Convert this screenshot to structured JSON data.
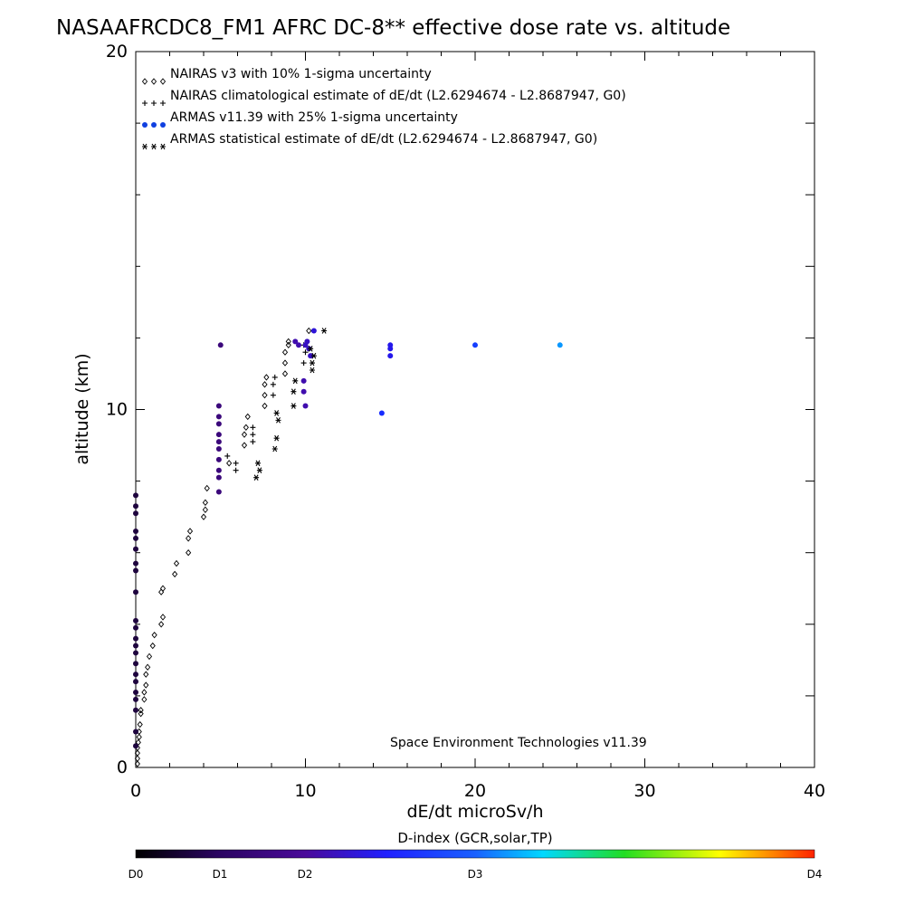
{
  "chart_data": {
    "type": "scatter",
    "title": "NASAAFRCDC8_FM1 AFRC DC-8** effective dose rate vs. altitude",
    "xlabel": "dE/dt microSv/h",
    "ylabel": "altitude (km)",
    "xlim": [
      0,
      40
    ],
    "ylim": [
      0,
      20
    ],
    "x_ticks": [
      "0",
      "10",
      "20",
      "30",
      "40"
    ],
    "y_ticks": [
      "0",
      "10",
      "20"
    ],
    "grid": false,
    "legend_position": "top-left",
    "legend": [
      {
        "symbol": "◇◇◇",
        "label": "NAIRAS v3 with 10% 1-sigma uncertainty"
      },
      {
        "symbol": "+++",
        "label": "NAIRAS climatological estimate of dE/dt (L2.6294674 - L2.8687947, G0)"
      },
      {
        "symbol": "●●●",
        "label": "ARMAS v11.39 with 25% 1-sigma uncertainty",
        "color": "#1040e0"
      },
      {
        "symbol": "✱✱✱",
        "label": "ARMAS statistical estimate of dE/dt (L2.6294674 - L2.8687947, G0)"
      }
    ],
    "annotation": "Space Environment Technologies v11.39",
    "colorbar": {
      "title": "D-index (GCR,solar,TP)",
      "labels": [
        {
          "text": "D0",
          "value": 0
        },
        {
          "text": "D1",
          "value": 0.25
        },
        {
          "text": "D2",
          "value": 0.5
        },
        {
          "text": "D3",
          "value": 1.0
        },
        {
          "text": "D4",
          "value": 2.0
        }
      ],
      "colors": [
        "#000000",
        "#4a0a8a",
        "#1a1aff",
        "#00ccff",
        "#22dd22",
        "#ffff00",
        "#ff2200"
      ]
    },
    "series": [
      {
        "name": "NAIRAS v3 with 10% 1-sigma uncertainty",
        "marker": "diamond",
        "color": "#000000",
        "points": [
          [
            0.1,
            0.1
          ],
          [
            0.1,
            0.25
          ],
          [
            0.1,
            0.4
          ],
          [
            0.1,
            0.55
          ],
          [
            0.15,
            0.7
          ],
          [
            0.2,
            0.85
          ],
          [
            0.2,
            1.0
          ],
          [
            0.25,
            1.2
          ],
          [
            0.3,
            1.5
          ],
          [
            0.3,
            1.6
          ],
          [
            0.5,
            1.9
          ],
          [
            0.5,
            2.1
          ],
          [
            0.6,
            2.3
          ],
          [
            0.6,
            2.6
          ],
          [
            0.7,
            2.8
          ],
          [
            0.8,
            3.1
          ],
          [
            1.0,
            3.4
          ],
          [
            1.1,
            3.7
          ],
          [
            1.5,
            4.0
          ],
          [
            1.6,
            4.2
          ],
          [
            1.5,
            4.9
          ],
          [
            1.6,
            5.0
          ],
          [
            2.3,
            5.4
          ],
          [
            2.4,
            5.7
          ],
          [
            3.1,
            6.0
          ],
          [
            3.1,
            6.4
          ],
          [
            3.2,
            6.6
          ],
          [
            4.0,
            7.0
          ],
          [
            4.1,
            7.2
          ],
          [
            4.1,
            7.4
          ],
          [
            4.2,
            7.8
          ],
          [
            5.5,
            8.5
          ],
          [
            6.4,
            9.0
          ],
          [
            6.4,
            9.3
          ],
          [
            6.5,
            9.5
          ],
          [
            6.6,
            9.8
          ],
          [
            7.6,
            10.1
          ],
          [
            7.6,
            10.4
          ],
          [
            7.6,
            10.7
          ],
          [
            7.7,
            10.9
          ],
          [
            8.8,
            11.0
          ],
          [
            8.8,
            11.3
          ],
          [
            8.8,
            11.6
          ],
          [
            9.0,
            11.8
          ],
          [
            9.0,
            11.9
          ],
          [
            10.2,
            12.2
          ]
        ]
      },
      {
        "name": "NAIRAS climatological estimate of dE/dt (L2.6294674 - L2.8687947, G0)",
        "marker": "plus",
        "color": "#000000",
        "points": [
          [
            5.9,
            8.3
          ],
          [
            5.9,
            8.5
          ],
          [
            5.4,
            8.7
          ],
          [
            6.9,
            9.1
          ],
          [
            6.9,
            9.3
          ],
          [
            6.9,
            9.5
          ],
          [
            8.1,
            10.4
          ],
          [
            8.1,
            10.7
          ],
          [
            8.2,
            10.9
          ],
          [
            9.9,
            11.3
          ],
          [
            10.0,
            11.6
          ],
          [
            9.9,
            11.8
          ]
        ]
      },
      {
        "name": "ARMAS v11.39 with 25% 1-sigma uncertainty",
        "marker": "dot",
        "points": [
          [
            5.0,
            11.8,
            0.2
          ],
          [
            4.9,
            10.1,
            0.2
          ],
          [
            4.9,
            9.8,
            0.2
          ],
          [
            4.9,
            9.6,
            0.2
          ],
          [
            4.9,
            9.3,
            0.2
          ],
          [
            4.9,
            9.1,
            0.2
          ],
          [
            4.9,
            8.9,
            0.2
          ],
          [
            4.9,
            8.6,
            0.2
          ],
          [
            4.9,
            8.3,
            0.2
          ],
          [
            4.9,
            8.1,
            0.2
          ],
          [
            4.9,
            7.7,
            0.2
          ],
          [
            0.0,
            7.6,
            0.1
          ],
          [
            0.0,
            7.3,
            0.1
          ],
          [
            0.0,
            7.1,
            0.1
          ],
          [
            0.0,
            6.6,
            0.1
          ],
          [
            0.0,
            6.4,
            0.1
          ],
          [
            0.0,
            6.1,
            0.1
          ],
          [
            0.0,
            5.7,
            0.1
          ],
          [
            0.0,
            5.5,
            0.1
          ],
          [
            0.0,
            4.9,
            0.1
          ],
          [
            0.0,
            4.1,
            0.1
          ],
          [
            0.0,
            3.9,
            0.1
          ],
          [
            0.0,
            3.6,
            0.1
          ],
          [
            0.0,
            3.4,
            0.1
          ],
          [
            0.0,
            3.2,
            0.1
          ],
          [
            0.0,
            2.9,
            0.1
          ],
          [
            0.0,
            2.6,
            0.1
          ],
          [
            0.0,
            2.4,
            0.1
          ],
          [
            0.0,
            2.1,
            0.1
          ],
          [
            0.0,
            1.9,
            0.1
          ],
          [
            0.0,
            1.6,
            0.1
          ],
          [
            0.0,
            1.0,
            0.1
          ],
          [
            0.0,
            0.6,
            0.1
          ],
          [
            10.0,
            11.8,
            0.35
          ],
          [
            10.1,
            11.9,
            0.35
          ],
          [
            10.2,
            11.7,
            0.35
          ],
          [
            10.3,
            11.5,
            0.35
          ],
          [
            9.6,
            11.8,
            0.3
          ],
          [
            9.4,
            11.9,
            0.3
          ],
          [
            9.9,
            10.8,
            0.3
          ],
          [
            9.9,
            10.5,
            0.3
          ],
          [
            10.0,
            10.1,
            0.3
          ],
          [
            10.5,
            12.2,
            0.4
          ],
          [
            14.5,
            9.9,
            0.55
          ],
          [
            15.0,
            11.8,
            0.45
          ],
          [
            15.0,
            11.7,
            0.45
          ],
          [
            15.0,
            11.5,
            0.45
          ],
          [
            20.0,
            11.8,
            0.6
          ],
          [
            25.0,
            11.8,
            0.85
          ]
        ]
      },
      {
        "name": "ARMAS statistical estimate of dE/dt (L2.6294674 - L2.8687947, G0)",
        "marker": "asterisk",
        "color": "#000000",
        "points": [
          [
            7.2,
            8.5
          ],
          [
            7.3,
            8.3
          ],
          [
            7.1,
            8.1
          ],
          [
            8.3,
            9.2
          ],
          [
            8.2,
            8.9
          ],
          [
            8.3,
            9.9
          ],
          [
            8.4,
            9.7
          ],
          [
            9.3,
            10.1
          ],
          [
            9.3,
            10.5
          ],
          [
            9.4,
            10.8
          ],
          [
            10.4,
            11.3
          ],
          [
            10.5,
            11.5
          ],
          [
            10.4,
            11.1
          ],
          [
            10.3,
            11.7
          ],
          [
            11.1,
            12.2
          ]
        ]
      }
    ]
  }
}
